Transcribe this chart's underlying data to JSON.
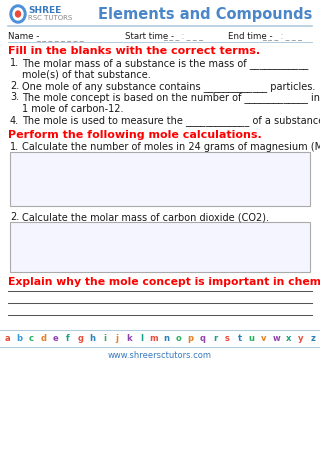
{
  "title": "Elements and Compounds",
  "logo_text_shree": "SHREE",
  "logo_text_rsc": "RSC TUTORS",
  "header_line_color": "#b0cce0",
  "name_label": "Name - _ _ _ _ _ _ _ _ _",
  "start_label": "Start time - _ _ _ : _ _ _",
  "end_label": "End time - _ _ _ : _ _ _",
  "section1_heading": "Fill in the blanks with the correct terms.",
  "section1_color": "#ff0000",
  "section2_heading": "Perform the following mole calculations.",
  "section2_color": "#ff0000",
  "section3_heading": "Explain why the mole concept is important in chemistry.",
  "section3_color": "#ff0000",
  "website": "www.shreersctutors.com",
  "bg_color": "#ffffff",
  "box_edge_color": "#aaaaaa",
  "box_face_color": "#f5f5ff",
  "text_color": "#1a1a1a",
  "dashed_color": "#888888",
  "line_color": "#555555",
  "alphabet_colors": [
    "#e74c3c",
    "#3498db",
    "#27ae60",
    "#e67e22",
    "#8e44ad",
    "#16a085",
    "#e74c3c",
    "#2980b9",
    "#27ae60",
    "#e67e22",
    "#8e44ad",
    "#16a085",
    "#e74c3c",
    "#2980b9",
    "#27ae60",
    "#e67e22",
    "#8e44ad",
    "#16a085",
    "#e74c3c",
    "#2980b9",
    "#27ae60",
    "#e67e22",
    "#8e44ad",
    "#16a085",
    "#e74c3c",
    "#2980b9"
  ]
}
